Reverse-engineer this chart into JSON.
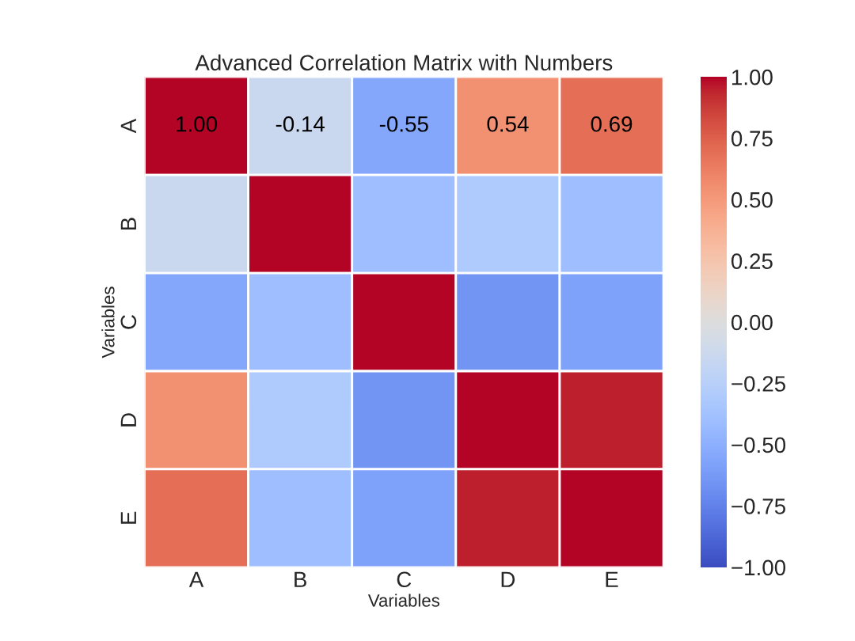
{
  "chart_data": {
    "type": "heatmap",
    "title": "Advanced Correlation Matrix with Numbers",
    "xlabel": "Variables",
    "ylabel": "Variables",
    "categories": [
      "A",
      "B",
      "C",
      "D",
      "E"
    ],
    "y_categories": [
      "A",
      "B",
      "C",
      "D",
      "E"
    ],
    "cells": [
      [
        1.0,
        -0.14,
        -0.55,
        0.54,
        0.69
      ],
      [
        -0.14,
        1.0,
        -0.4,
        -0.3,
        -0.4
      ],
      [
        -0.55,
        -0.4,
        1.0,
        -0.65,
        -0.58
      ],
      [
        0.54,
        -0.3,
        -0.65,
        1.0,
        0.95
      ],
      [
        0.69,
        -0.4,
        -0.58,
        0.95,
        1.0
      ]
    ],
    "cell_labels": [
      [
        "1.00",
        "-0.14",
        "-0.55",
        "0.54",
        "0.69"
      ],
      [
        null,
        null,
        null,
        null,
        null
      ],
      [
        null,
        null,
        null,
        null,
        null
      ],
      [
        null,
        null,
        null,
        null,
        null
      ],
      [
        null,
        null,
        null,
        null,
        null
      ]
    ],
    "clim": [
      -1,
      1
    ],
    "cticks": [
      {
        "value": -1,
        "label": "−1.00"
      },
      {
        "value": -0.75,
        "label": "−0.75"
      },
      {
        "value": -0.5,
        "label": "−0.50"
      },
      {
        "value": -0.25,
        "label": "−0.25"
      },
      {
        "value": 0,
        "label": "0.00"
      },
      {
        "value": 0.25,
        "label": "0.25"
      },
      {
        "value": 0.5,
        "label": "0.50"
      },
      {
        "value": 0.75,
        "label": "0.75"
      },
      {
        "value": 1,
        "label": "1.00"
      }
    ]
  }
}
